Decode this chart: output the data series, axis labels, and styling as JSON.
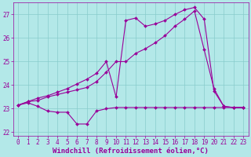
{
  "bg_color": "#b3e8e8",
  "line_color": "#990099",
  "grid_color": "#88cccc",
  "xlabel": "Windchill (Refroidissement éolien,°C)",
  "ylim": [
    21.85,
    27.5
  ],
  "xlim": [
    -0.5,
    23.5
  ],
  "yticks": [
    22,
    23,
    24,
    25,
    26,
    27
  ],
  "xticks": [
    0,
    1,
    2,
    3,
    4,
    5,
    6,
    7,
    8,
    9,
    10,
    11,
    12,
    13,
    14,
    15,
    16,
    17,
    18,
    19,
    20,
    21,
    22,
    23
  ],
  "series1_x": [
    0,
    1,
    2,
    3,
    4,
    5,
    6,
    7,
    8,
    9,
    10,
    11,
    12,
    13,
    14,
    15,
    16,
    17,
    18,
    19,
    20,
    21,
    22,
    23
  ],
  "series1_y": [
    23.15,
    23.25,
    23.1,
    22.9,
    22.85,
    22.85,
    22.35,
    22.35,
    22.9,
    23.0,
    23.05,
    23.05,
    23.05,
    23.05,
    23.05,
    23.05,
    23.05,
    23.05,
    23.05,
    23.05,
    23.05,
    23.05,
    23.05,
    23.05
  ],
  "series2_x": [
    0,
    1,
    2,
    3,
    4,
    5,
    6,
    7,
    8,
    9,
    10,
    11,
    12,
    13,
    14,
    15,
    16,
    17,
    18,
    19,
    20,
    21,
    22,
    23
  ],
  "series2_y": [
    23.15,
    23.3,
    23.35,
    23.5,
    23.6,
    23.7,
    23.8,
    23.9,
    24.15,
    24.55,
    25.0,
    25.0,
    25.35,
    25.55,
    25.8,
    26.1,
    26.5,
    26.8,
    27.15,
    25.5,
    23.85,
    23.1,
    23.05,
    23.05
  ],
  "series3_x": [
    0,
    1,
    2,
    3,
    4,
    5,
    6,
    7,
    8,
    9,
    10,
    11,
    12,
    13,
    14,
    15,
    16,
    17,
    18,
    19,
    20,
    21,
    22,
    23
  ],
  "series3_y": [
    23.15,
    23.3,
    23.45,
    23.55,
    23.7,
    23.85,
    24.05,
    24.25,
    24.5,
    25.0,
    23.5,
    26.75,
    26.85,
    26.5,
    26.6,
    26.75,
    27.0,
    27.2,
    27.3,
    26.8,
    23.75,
    23.1,
    23.05,
    23.05
  ],
  "marker": "D",
  "markersize": 2.0,
  "linewidth": 0.8,
  "xlabel_fontsize": 6.5,
  "tick_fontsize": 5.5
}
